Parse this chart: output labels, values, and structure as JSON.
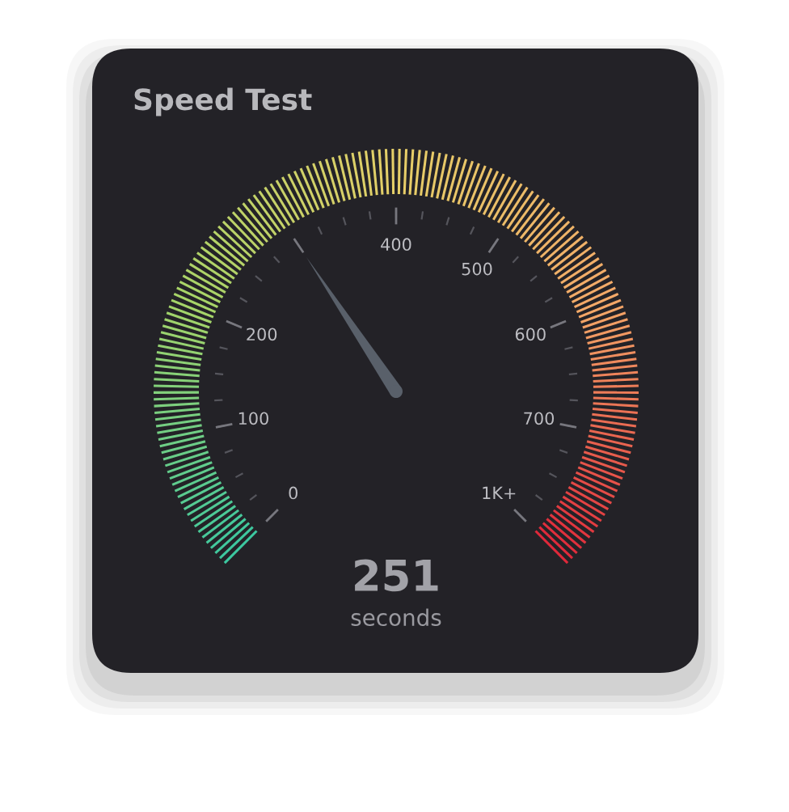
{
  "chart_data": {
    "type": "other",
    "title": "Speed Test",
    "values": [
      251
    ],
    "data_labels": true,
    "ylabel": "seconds",
    "annotations": [
      "0",
      "100",
      "200",
      "400",
      "500",
      "600",
      "700",
      "1K+"
    ]
  }
}
